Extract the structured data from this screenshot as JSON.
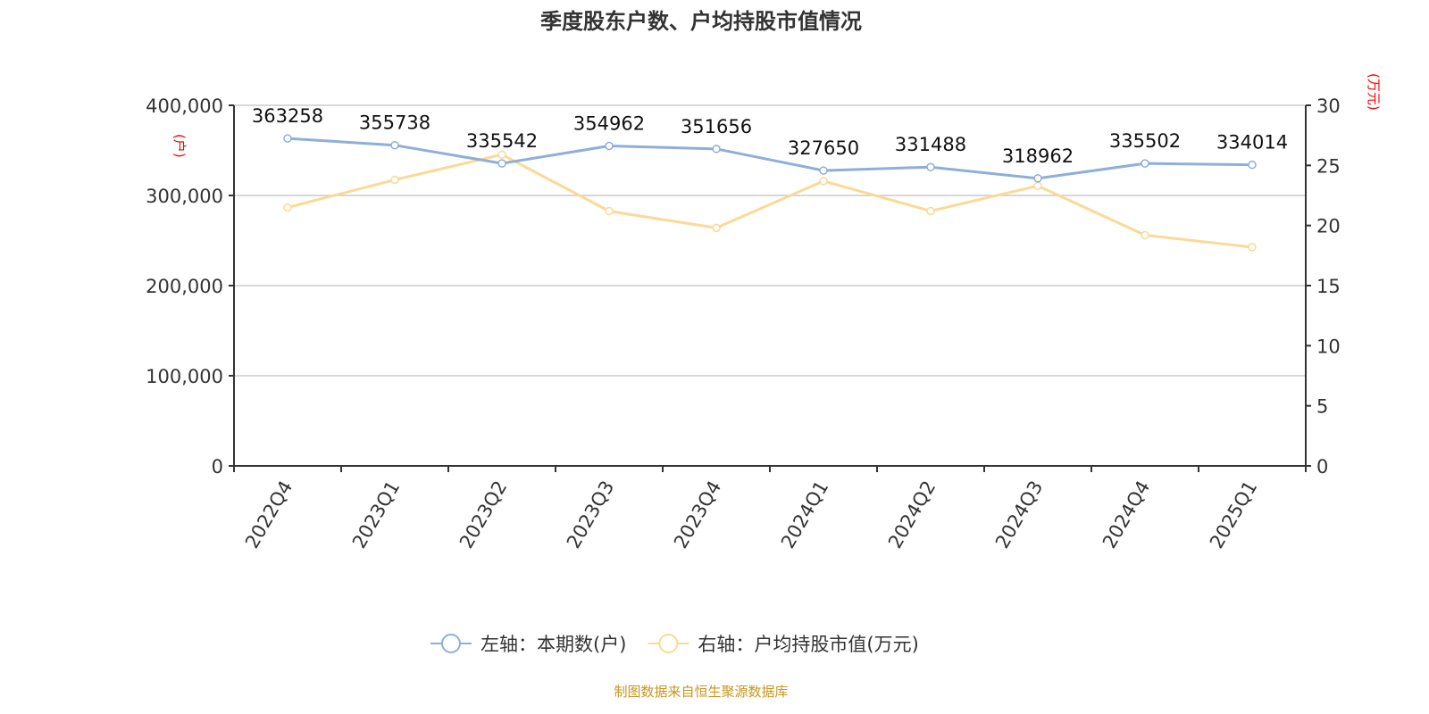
{
  "chart_data": {
    "type": "line",
    "title": "季度股东户数、户均持股市值情况",
    "categories": [
      "2022Q4",
      "2023Q1",
      "2023Q2",
      "2023Q3",
      "2023Q4",
      "2024Q1",
      "2024Q2",
      "2024Q3",
      "2024Q4",
      "2025Q1"
    ],
    "series": [
      {
        "name": "左轴：本期数(户)",
        "axis": "left",
        "color": "#8eaedb",
        "values": [
          363258,
          355738,
          335542,
          354962,
          351656,
          327650,
          331488,
          318962,
          335502,
          334014
        ],
        "data_labels": true
      },
      {
        "name": "右轴：户均持股市值(万元)",
        "axis": "right",
        "color": "#fcd997",
        "values": [
          21.5,
          23.8,
          25.9,
          21.2,
          19.8,
          23.7,
          21.2,
          23.3,
          19.2,
          18.2
        ],
        "data_labels": false
      }
    ],
    "y_left": {
      "label": "(户)",
      "lim": [
        0,
        400000
      ],
      "ticks": [
        "0",
        "100,000",
        "200,000",
        "300,000",
        "400,000"
      ]
    },
    "y_right": {
      "label": "(万元)",
      "lim": [
        0,
        30
      ],
      "ticks": [
        "0",
        "5",
        "10",
        "15",
        "20",
        "25",
        "30"
      ]
    },
    "grid": true,
    "legend": "bottom",
    "source": "制图数据来自恒生聚源数据库"
  }
}
